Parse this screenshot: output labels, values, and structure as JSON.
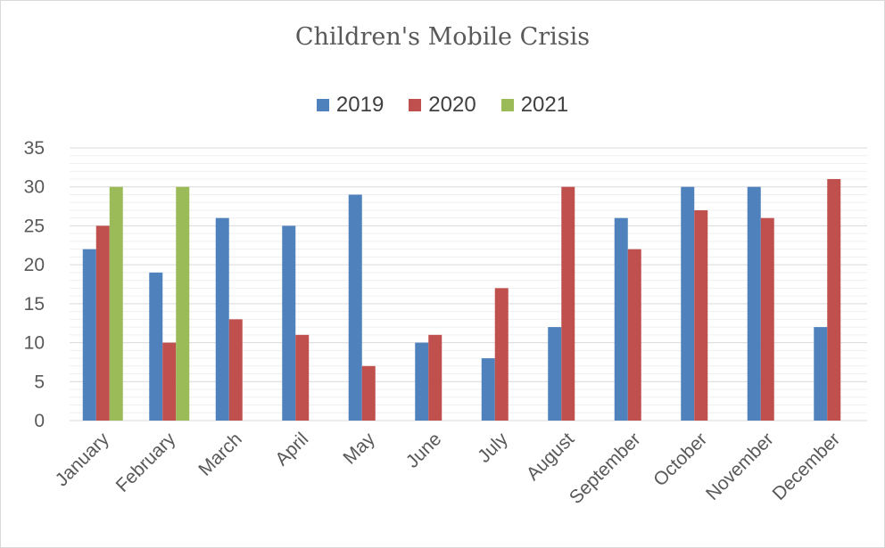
{
  "chart_data": {
    "type": "bar",
    "title": "Children's Mobile Crisis",
    "xlabel": "",
    "ylabel": "",
    "ylim": [
      0,
      35
    ],
    "yticks": [
      0,
      5,
      10,
      15,
      20,
      25,
      30,
      35
    ],
    "grid": true,
    "legend_position": "top-center",
    "categories": [
      "January",
      "February",
      "March",
      "April",
      "May",
      "June",
      "July",
      "August",
      "September",
      "October",
      "November",
      "December"
    ],
    "series": [
      {
        "name": "2019",
        "color": "#4f81bd",
        "values": [
          22,
          19,
          26,
          25,
          29,
          10,
          8,
          12,
          26,
          30,
          30,
          12
        ]
      },
      {
        "name": "2020",
        "color": "#c0504d",
        "values": [
          25,
          10,
          13,
          11,
          7,
          11,
          17,
          30,
          22,
          27,
          26,
          31
        ]
      },
      {
        "name": "2021",
        "color": "#9bbb59",
        "values": [
          30,
          30,
          null,
          null,
          null,
          null,
          null,
          null,
          null,
          null,
          null,
          null
        ]
      }
    ]
  }
}
